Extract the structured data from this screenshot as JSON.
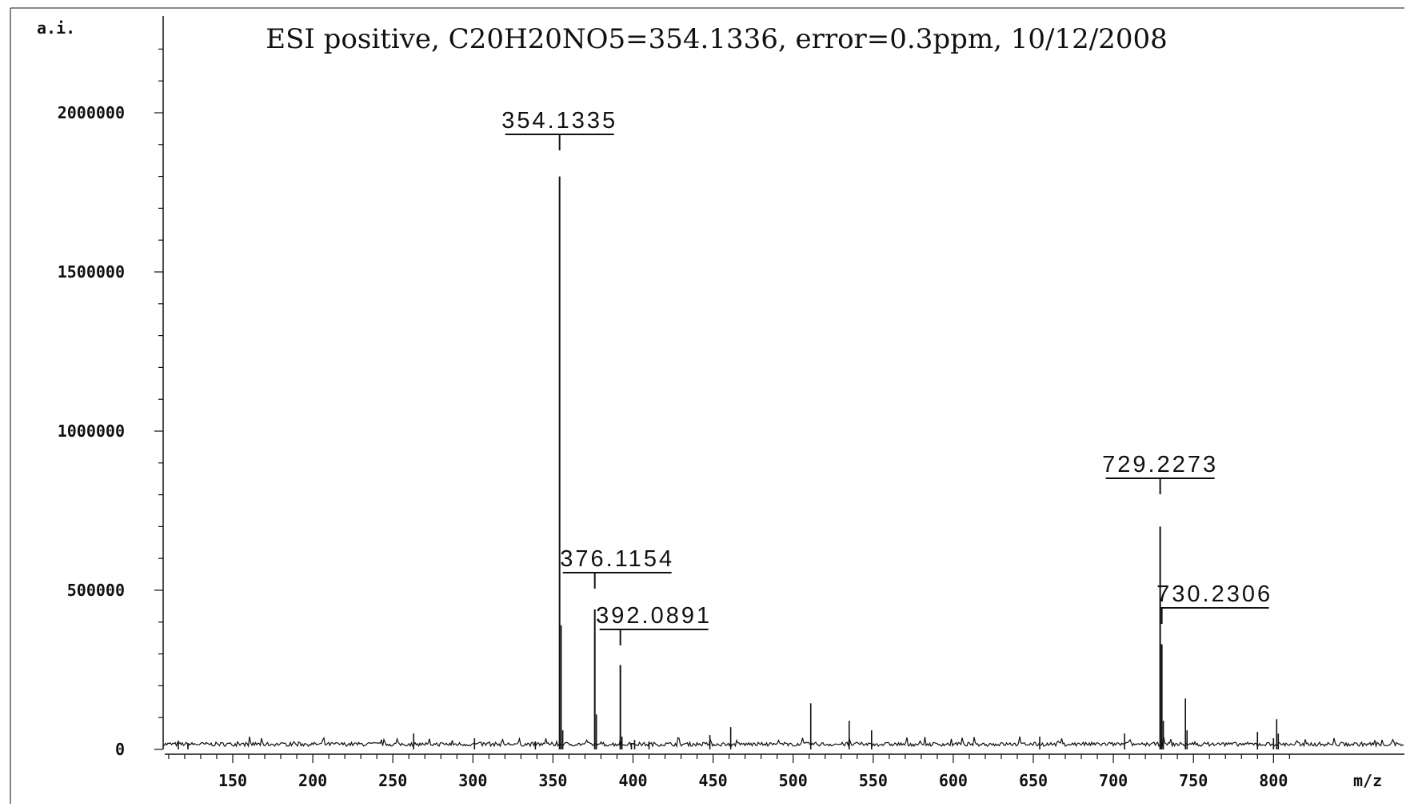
{
  "chart_data": {
    "type": "line",
    "subtype": "mass-spectrum",
    "title": "ESI positive, C20H20NO5=354.1336, error=0.3ppm, 10/12/2008",
    "ylabel": "a.i.",
    "xlabel": "m/z",
    "xlim": [
      110,
      810
    ],
    "ylim": [
      0,
      2200000
    ],
    "x_ticks": [
      150,
      200,
      250,
      300,
      350,
      400,
      450,
      500,
      550,
      600,
      650,
      700,
      750,
      800
    ],
    "y_ticks": [
      0,
      500000,
      1000000,
      1500000,
      2000000
    ],
    "y_tick_labels": [
      "0",
      "500000",
      "1000000",
      "1500000",
      "2000000"
    ],
    "grid": false,
    "legend": "none",
    "line_color": "#111111",
    "labeled_peaks": [
      {
        "mz": 354.1335,
        "label": "354.1335",
        "intensity": 1800000
      },
      {
        "mz": 376.1154,
        "label": "376.1154",
        "intensity": 440000
      },
      {
        "mz": 392.0891,
        "label": "392.0891",
        "intensity": 265000
      },
      {
        "mz": 729.2273,
        "label": "729.2273",
        "intensity": 700000
      },
      {
        "mz": 730.2306,
        "label": "730.2306",
        "intensity": 330000
      }
    ],
    "minor_peaks": [
      {
        "mz": 116,
        "intensity": 28000
      },
      {
        "mz": 122,
        "intensity": 20000
      },
      {
        "mz": 263,
        "intensity": 50000
      },
      {
        "mz": 301,
        "intensity": 35000
      },
      {
        "mz": 339,
        "intensity": 25000
      },
      {
        "mz": 355.1,
        "intensity": 390000
      },
      {
        "mz": 356.1,
        "intensity": 60000
      },
      {
        "mz": 377.1,
        "intensity": 110000
      },
      {
        "mz": 393.1,
        "intensity": 40000
      },
      {
        "mz": 399,
        "intensity": 20000
      },
      {
        "mz": 401,
        "intensity": 30000
      },
      {
        "mz": 410,
        "intensity": 25000
      },
      {
        "mz": 448,
        "intensity": 45000
      },
      {
        "mz": 461,
        "intensity": 70000
      },
      {
        "mz": 511,
        "intensity": 145000
      },
      {
        "mz": 535,
        "intensity": 90000
      },
      {
        "mz": 549,
        "intensity": 60000
      },
      {
        "mz": 654,
        "intensity": 40000
      },
      {
        "mz": 707,
        "intensity": 50000
      },
      {
        "mz": 731.2,
        "intensity": 90000
      },
      {
        "mz": 745,
        "intensity": 160000
      },
      {
        "mz": 746,
        "intensity": 60000
      },
      {
        "mz": 790,
        "intensity": 55000
      },
      {
        "mz": 800,
        "intensity": 35000
      },
      {
        "mz": 802,
        "intensity": 95000
      },
      {
        "mz": 803,
        "intensity": 50000
      }
    ]
  }
}
